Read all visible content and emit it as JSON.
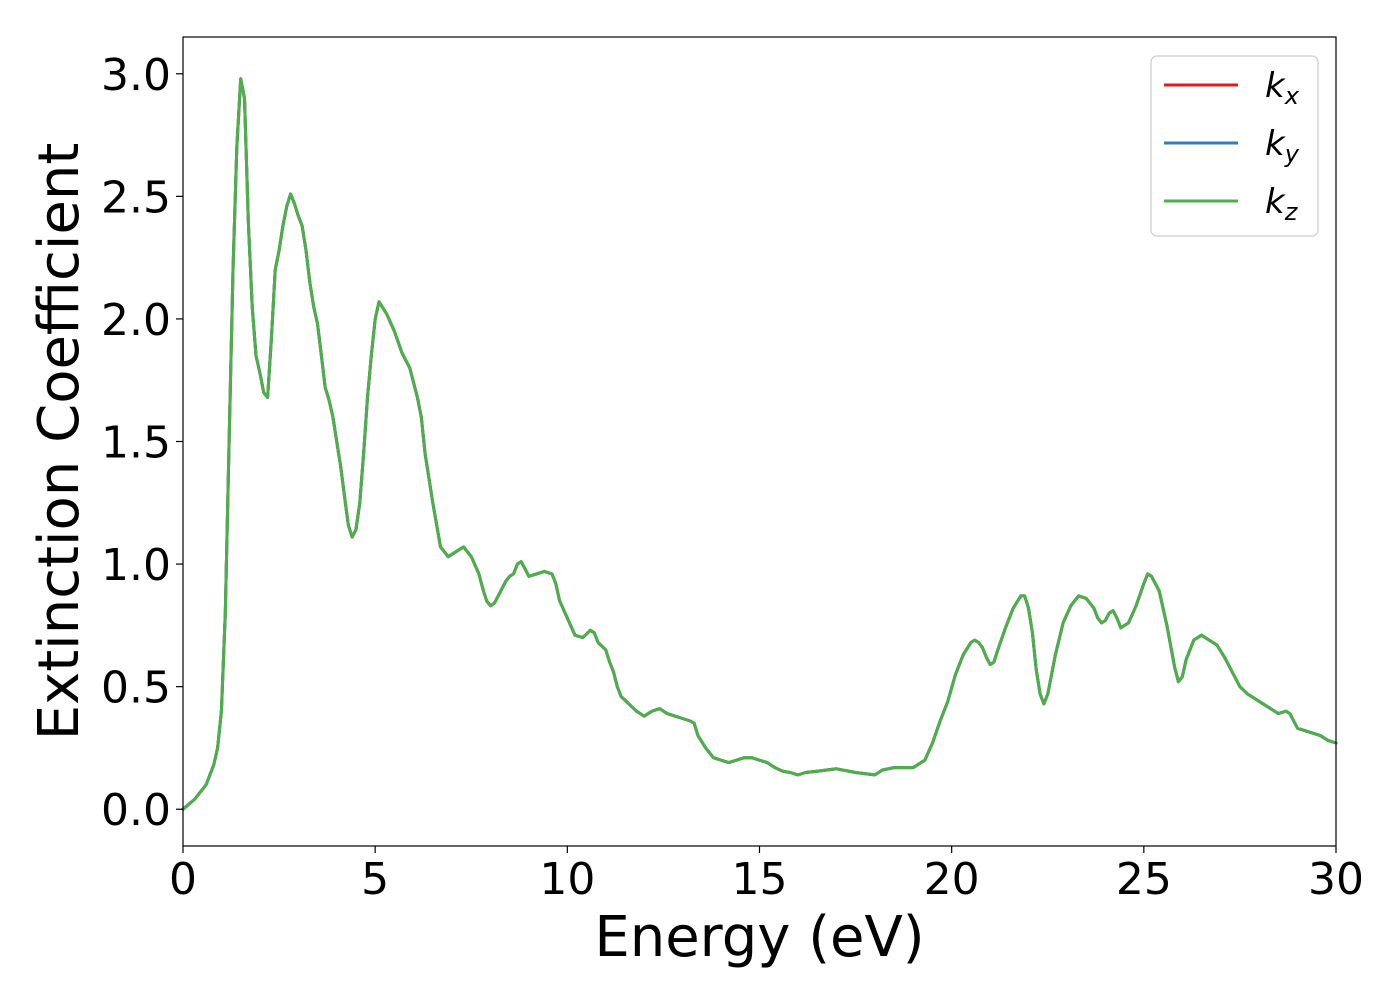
{
  "chart_data": {
    "type": "line",
    "title": "",
    "xlabel": "Energy (eV)",
    "ylabel": "Extinction Coefficient",
    "xlim": [
      0,
      30
    ],
    "ylim": [
      -0.15,
      3.15
    ],
    "xticks": [
      0,
      5,
      10,
      15,
      20,
      25,
      30
    ],
    "xtick_labels": [
      "0",
      "5",
      "10",
      "15",
      "20",
      "25",
      "30"
    ],
    "yticks": [
      0.0,
      0.5,
      1.0,
      1.5,
      2.0,
      2.5,
      3.0
    ],
    "ytick_labels": [
      "0.0",
      "0.5",
      "1.0",
      "1.5",
      "2.0",
      "2.5",
      "3.0"
    ],
    "grid": false,
    "legend_position": "top-right",
    "x": [
      0,
      0.3,
      0.6,
      0.8,
      0.9,
      1.0,
      1.1,
      1.2,
      1.3,
      1.4,
      1.5,
      1.6,
      1.7,
      1.8,
      1.9,
      2.0,
      2.1,
      2.2,
      2.3,
      2.4,
      2.5,
      2.6,
      2.7,
      2.8,
      2.9,
      3.0,
      3.1,
      3.2,
      3.3,
      3.4,
      3.5,
      3.6,
      3.7,
      3.8,
      3.9,
      4.0,
      4.1,
      4.2,
      4.3,
      4.4,
      4.5,
      4.6,
      4.7,
      4.8,
      4.9,
      5.0,
      5.1,
      5.3,
      5.5,
      5.7,
      5.9,
      6.0,
      6.1,
      6.2,
      6.3,
      6.5,
      6.7,
      6.9,
      7.1,
      7.3,
      7.5,
      7.7,
      7.8,
      7.9,
      8.0,
      8.1,
      8.2,
      8.3,
      8.4,
      8.5,
      8.6,
      8.7,
      8.8,
      8.9,
      9.0,
      9.2,
      9.4,
      9.6,
      9.7,
      9.8,
      10.0,
      10.2,
      10.4,
      10.6,
      10.7,
      10.8,
      11.0,
      11.1,
      11.2,
      11.3,
      11.4,
      11.6,
      11.8,
      12.0,
      12.2,
      12.4,
      12.6,
      12.8,
      13.0,
      13.2,
      13.3,
      13.4,
      13.6,
      13.8,
      14.0,
      14.2,
      14.4,
      14.6,
      14.8,
      15.0,
      15.2,
      15.4,
      15.6,
      15.8,
      16.0,
      16.2,
      16.5,
      17.0,
      17.5,
      18.0,
      18.2,
      18.5,
      19.0,
      19.3,
      19.5,
      19.7,
      19.9,
      20.1,
      20.3,
      20.5,
      20.6,
      20.7,
      20.8,
      20.9,
      21.0,
      21.1,
      21.2,
      21.4,
      21.6,
      21.8,
      21.9,
      22.0,
      22.1,
      22.2,
      22.3,
      22.4,
      22.5,
      22.7,
      22.9,
      23.1,
      23.3,
      23.5,
      23.7,
      23.8,
      23.9,
      24.0,
      24.1,
      24.2,
      24.3,
      24.4,
      24.6,
      24.8,
      25.0,
      25.1,
      25.2,
      25.4,
      25.6,
      25.8,
      25.9,
      26.0,
      26.1,
      26.3,
      26.5,
      26.7,
      26.9,
      27.1,
      27.3,
      27.5,
      27.7,
      27.9,
      28.1,
      28.3,
      28.5,
      28.7,
      28.8,
      28.9,
      29.0,
      29.2,
      29.4,
      29.6,
      29.8,
      30.0
    ],
    "series": [
      {
        "name": "k_x",
        "color": "#e41a1c",
        "y": [
          0.0,
          0.04,
          0.1,
          0.18,
          0.25,
          0.4,
          0.8,
          1.5,
          2.2,
          2.7,
          2.98,
          2.9,
          2.4,
          2.05,
          1.85,
          1.78,
          1.7,
          1.68,
          1.92,
          2.2,
          2.28,
          2.38,
          2.46,
          2.51,
          2.47,
          2.42,
          2.38,
          2.28,
          2.15,
          2.05,
          1.98,
          1.85,
          1.72,
          1.67,
          1.6,
          1.5,
          1.4,
          1.28,
          1.16,
          1.11,
          1.14,
          1.25,
          1.45,
          1.68,
          1.85,
          2.0,
          2.07,
          2.02,
          1.95,
          1.86,
          1.8,
          1.74,
          1.68,
          1.6,
          1.45,
          1.25,
          1.07,
          1.03,
          1.05,
          1.07,
          1.03,
          0.96,
          0.9,
          0.85,
          0.83,
          0.84,
          0.87,
          0.9,
          0.93,
          0.95,
          0.96,
          1.0,
          1.01,
          0.98,
          0.95,
          0.96,
          0.97,
          0.96,
          0.92,
          0.85,
          0.78,
          0.71,
          0.7,
          0.73,
          0.72,
          0.68,
          0.65,
          0.6,
          0.56,
          0.5,
          0.46,
          0.43,
          0.4,
          0.38,
          0.4,
          0.41,
          0.39,
          0.38,
          0.37,
          0.36,
          0.35,
          0.3,
          0.25,
          0.21,
          0.2,
          0.19,
          0.2,
          0.21,
          0.21,
          0.2,
          0.19,
          0.17,
          0.155,
          0.15,
          0.14,
          0.15,
          0.155,
          0.165,
          0.15,
          0.14,
          0.16,
          0.17,
          0.17,
          0.2,
          0.27,
          0.36,
          0.44,
          0.55,
          0.63,
          0.68,
          0.69,
          0.68,
          0.66,
          0.62,
          0.59,
          0.6,
          0.65,
          0.74,
          0.82,
          0.87,
          0.87,
          0.82,
          0.72,
          0.57,
          0.47,
          0.43,
          0.47,
          0.63,
          0.76,
          0.83,
          0.87,
          0.86,
          0.82,
          0.78,
          0.76,
          0.77,
          0.8,
          0.81,
          0.78,
          0.74,
          0.76,
          0.83,
          0.92,
          0.96,
          0.95,
          0.89,
          0.75,
          0.58,
          0.52,
          0.54,
          0.61,
          0.69,
          0.71,
          0.69,
          0.67,
          0.62,
          0.56,
          0.5,
          0.47,
          0.45,
          0.43,
          0.41,
          0.39,
          0.4,
          0.39,
          0.36,
          0.33,
          0.32,
          0.31,
          0.3,
          0.28,
          0.27
        ]
      },
      {
        "name": "k_y",
        "color": "#377eb8",
        "y": [
          0.0,
          0.04,
          0.1,
          0.18,
          0.25,
          0.4,
          0.8,
          1.5,
          2.2,
          2.7,
          2.98,
          2.9,
          2.4,
          2.05,
          1.85,
          1.78,
          1.7,
          1.68,
          1.92,
          2.2,
          2.28,
          2.38,
          2.46,
          2.51,
          2.47,
          2.42,
          2.38,
          2.28,
          2.15,
          2.05,
          1.98,
          1.85,
          1.72,
          1.67,
          1.6,
          1.5,
          1.4,
          1.28,
          1.16,
          1.11,
          1.14,
          1.25,
          1.45,
          1.68,
          1.85,
          2.0,
          2.07,
          2.02,
          1.95,
          1.86,
          1.8,
          1.74,
          1.68,
          1.6,
          1.45,
          1.25,
          1.07,
          1.03,
          1.05,
          1.07,
          1.03,
          0.96,
          0.9,
          0.85,
          0.83,
          0.84,
          0.87,
          0.9,
          0.93,
          0.95,
          0.96,
          1.0,
          1.01,
          0.98,
          0.95,
          0.96,
          0.97,
          0.96,
          0.92,
          0.85,
          0.78,
          0.71,
          0.7,
          0.73,
          0.72,
          0.68,
          0.65,
          0.6,
          0.56,
          0.5,
          0.46,
          0.43,
          0.4,
          0.38,
          0.4,
          0.41,
          0.39,
          0.38,
          0.37,
          0.36,
          0.35,
          0.3,
          0.25,
          0.21,
          0.2,
          0.19,
          0.2,
          0.21,
          0.21,
          0.2,
          0.19,
          0.17,
          0.155,
          0.15,
          0.14,
          0.15,
          0.155,
          0.165,
          0.15,
          0.14,
          0.16,
          0.17,
          0.17,
          0.2,
          0.27,
          0.36,
          0.44,
          0.55,
          0.63,
          0.68,
          0.69,
          0.68,
          0.66,
          0.62,
          0.59,
          0.6,
          0.65,
          0.74,
          0.82,
          0.87,
          0.87,
          0.82,
          0.72,
          0.57,
          0.47,
          0.43,
          0.47,
          0.63,
          0.76,
          0.83,
          0.87,
          0.86,
          0.82,
          0.78,
          0.76,
          0.77,
          0.8,
          0.81,
          0.78,
          0.74,
          0.76,
          0.83,
          0.92,
          0.96,
          0.95,
          0.89,
          0.75,
          0.58,
          0.52,
          0.54,
          0.61,
          0.69,
          0.71,
          0.69,
          0.67,
          0.62,
          0.56,
          0.5,
          0.47,
          0.45,
          0.43,
          0.41,
          0.39,
          0.4,
          0.39,
          0.36,
          0.33,
          0.32,
          0.31,
          0.3,
          0.28,
          0.27
        ]
      },
      {
        "name": "k_z",
        "color": "#4daf4a",
        "y": [
          0.0,
          0.04,
          0.1,
          0.18,
          0.25,
          0.4,
          0.8,
          1.5,
          2.2,
          2.7,
          2.98,
          2.9,
          2.4,
          2.05,
          1.85,
          1.78,
          1.7,
          1.68,
          1.92,
          2.2,
          2.28,
          2.38,
          2.46,
          2.51,
          2.47,
          2.42,
          2.38,
          2.28,
          2.15,
          2.05,
          1.98,
          1.85,
          1.72,
          1.67,
          1.6,
          1.5,
          1.4,
          1.28,
          1.16,
          1.11,
          1.14,
          1.25,
          1.45,
          1.68,
          1.85,
          2.0,
          2.07,
          2.02,
          1.95,
          1.86,
          1.8,
          1.74,
          1.68,
          1.6,
          1.45,
          1.25,
          1.07,
          1.03,
          1.05,
          1.07,
          1.03,
          0.96,
          0.9,
          0.85,
          0.83,
          0.84,
          0.87,
          0.9,
          0.93,
          0.95,
          0.96,
          1.0,
          1.01,
          0.98,
          0.95,
          0.96,
          0.97,
          0.96,
          0.92,
          0.85,
          0.78,
          0.71,
          0.7,
          0.73,
          0.72,
          0.68,
          0.65,
          0.6,
          0.56,
          0.5,
          0.46,
          0.43,
          0.4,
          0.38,
          0.4,
          0.41,
          0.39,
          0.38,
          0.37,
          0.36,
          0.35,
          0.3,
          0.25,
          0.21,
          0.2,
          0.19,
          0.2,
          0.21,
          0.21,
          0.2,
          0.19,
          0.17,
          0.155,
          0.15,
          0.14,
          0.15,
          0.155,
          0.165,
          0.15,
          0.14,
          0.16,
          0.17,
          0.17,
          0.2,
          0.27,
          0.36,
          0.44,
          0.55,
          0.63,
          0.68,
          0.69,
          0.68,
          0.66,
          0.62,
          0.59,
          0.6,
          0.65,
          0.74,
          0.82,
          0.87,
          0.87,
          0.82,
          0.72,
          0.57,
          0.47,
          0.43,
          0.47,
          0.63,
          0.76,
          0.83,
          0.87,
          0.86,
          0.82,
          0.78,
          0.76,
          0.77,
          0.8,
          0.81,
          0.78,
          0.74,
          0.76,
          0.83,
          0.92,
          0.96,
          0.95,
          0.89,
          0.75,
          0.58,
          0.52,
          0.54,
          0.61,
          0.69,
          0.71,
          0.69,
          0.67,
          0.62,
          0.56,
          0.5,
          0.47,
          0.45,
          0.43,
          0.41,
          0.39,
          0.4,
          0.39,
          0.36,
          0.33,
          0.32,
          0.31,
          0.3,
          0.28,
          0.27
        ]
      }
    ],
    "legend": [
      {
        "symbol": "k",
        "subscript": "x",
        "color": "#e41a1c"
      },
      {
        "symbol": "k",
        "subscript": "y",
        "color": "#377eb8"
      },
      {
        "symbol": "k",
        "subscript": "z",
        "color": "#4daf4a"
      }
    ]
  }
}
